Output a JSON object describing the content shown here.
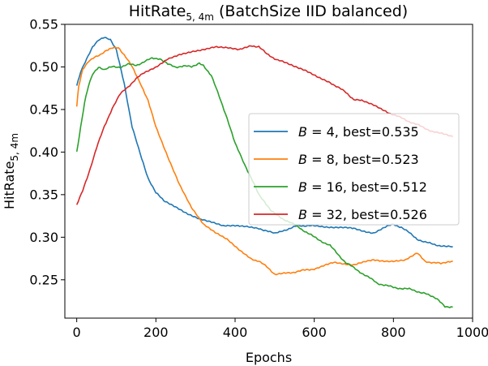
{
  "chart_data": {
    "type": "line",
    "title": {
      "main": "HitRate",
      "sub": "5, 4m",
      "suffix": " (BatchSize IID balanced)"
    },
    "xlabel": "Epochs",
    "ylabel": {
      "main": "HitRate",
      "sub": "5, 4m"
    },
    "xlim": [
      -30,
      1000
    ],
    "ylim": [
      0.205,
      0.55
    ],
    "xticks": [
      0,
      200,
      400,
      600,
      800,
      1000
    ],
    "yticks": [
      0.25,
      0.3,
      0.35,
      0.4,
      0.45,
      0.5,
      0.55
    ],
    "xtick_labels": [
      "0",
      "200",
      "400",
      "600",
      "800",
      "1000"
    ],
    "ytick_labels": [
      "0.25",
      "0.30",
      "0.35",
      "0.40",
      "0.45",
      "0.50",
      "0.55"
    ],
    "grid": false,
    "legend_position": "center-right",
    "series": [
      {
        "name": "B = 4, best=0.535",
        "legend": {
          "var": "B",
          "rest": " = 4, best=0.535"
        },
        "color": "#1f77b4",
        "x": [
          0,
          10,
          25,
          40,
          55,
          70,
          85,
          100,
          120,
          140,
          160,
          180,
          200,
          220,
          250,
          280,
          310,
          340,
          370,
          400,
          430,
          460,
          480,
          500,
          520,
          540,
          560,
          600,
          650,
          700,
          750,
          780,
          800,
          820,
          840,
          860,
          880,
          900,
          920,
          950
        ],
        "y": [
          0.478,
          0.495,
          0.51,
          0.524,
          0.532,
          0.535,
          0.532,
          0.52,
          0.48,
          0.43,
          0.398,
          0.37,
          0.352,
          0.343,
          0.336,
          0.328,
          0.322,
          0.318,
          0.313,
          0.313,
          0.312,
          0.31,
          0.308,
          0.304,
          0.308,
          0.31,
          0.314,
          0.313,
          0.312,
          0.31,
          0.305,
          0.312,
          0.315,
          0.312,
          0.305,
          0.298,
          0.294,
          0.292,
          0.29,
          0.289
        ]
      },
      {
        "name": "B = 8, best=0.523",
        "legend": {
          "var": "B",
          "rest": " = 8, best=0.523"
        },
        "color": "#ff7f0e",
        "x": [
          0,
          5,
          15,
          30,
          45,
          60,
          75,
          90,
          105,
          120,
          140,
          160,
          180,
          200,
          230,
          260,
          290,
          320,
          350,
          380,
          410,
          440,
          460,
          480,
          500,
          520,
          560,
          600,
          650,
          700,
          750,
          800,
          830,
          860,
          880,
          900,
          920,
          950
        ],
        "y": [
          0.453,
          0.478,
          0.497,
          0.507,
          0.512,
          0.515,
          0.52,
          0.523,
          0.523,
          0.514,
          0.5,
          0.482,
          0.46,
          0.43,
          0.395,
          0.362,
          0.335,
          0.315,
          0.305,
          0.297,
          0.285,
          0.275,
          0.272,
          0.265,
          0.257,
          0.257,
          0.26,
          0.263,
          0.27,
          0.268,
          0.273,
          0.272,
          0.273,
          0.281,
          0.272,
          0.27,
          0.269,
          0.272
        ]
      },
      {
        "name": "B = 16, best=0.512",
        "legend": {
          "var": "B",
          "rest": " = 16, best=0.512"
        },
        "color": "#2ca02c",
        "x": [
          0,
          10,
          20,
          30,
          40,
          55,
          70,
          90,
          110,
          130,
          150,
          170,
          190,
          210,
          230,
          250,
          270,
          290,
          310,
          320,
          340,
          360,
          380,
          400,
          420,
          440,
          460,
          490,
          520,
          560,
          600,
          640,
          680,
          720,
          760,
          800,
          840,
          880,
          910,
          930,
          950
        ],
        "y": [
          0.4,
          0.43,
          0.458,
          0.478,
          0.492,
          0.5,
          0.497,
          0.5,
          0.5,
          0.503,
          0.502,
          0.506,
          0.51,
          0.51,
          0.503,
          0.5,
          0.501,
          0.5,
          0.505,
          0.502,
          0.49,
          0.465,
          0.44,
          0.41,
          0.39,
          0.37,
          0.35,
          0.332,
          0.322,
          0.312,
          0.3,
          0.29,
          0.27,
          0.258,
          0.246,
          0.241,
          0.239,
          0.234,
          0.227,
          0.219,
          0.218
        ]
      },
      {
        "name": "B = 32, best=0.526",
        "legend": {
          "var": "B",
          "rest": " = 32, best=0.526"
        },
        "color": "#d62728",
        "x": [
          0,
          15,
          30,
          50,
          70,
          90,
          110,
          130,
          150,
          170,
          200,
          230,
          260,
          290,
          320,
          350,
          380,
          410,
          440,
          460,
          480,
          500,
          520,
          550,
          580,
          610,
          640,
          680,
          700,
          720,
          750,
          780,
          800,
          820,
          860,
          900,
          950
        ],
        "y": [
          0.338,
          0.355,
          0.375,
          0.405,
          0.43,
          0.452,
          0.468,
          0.477,
          0.486,
          0.493,
          0.5,
          0.51,
          0.515,
          0.518,
          0.52,
          0.523,
          0.522,
          0.52,
          0.525,
          0.524,
          0.515,
          0.51,
          0.506,
          0.5,
          0.495,
          0.488,
          0.482,
          0.47,
          0.462,
          0.46,
          0.455,
          0.448,
          0.444,
          0.44,
          0.432,
          0.424,
          0.418
        ]
      }
    ]
  }
}
